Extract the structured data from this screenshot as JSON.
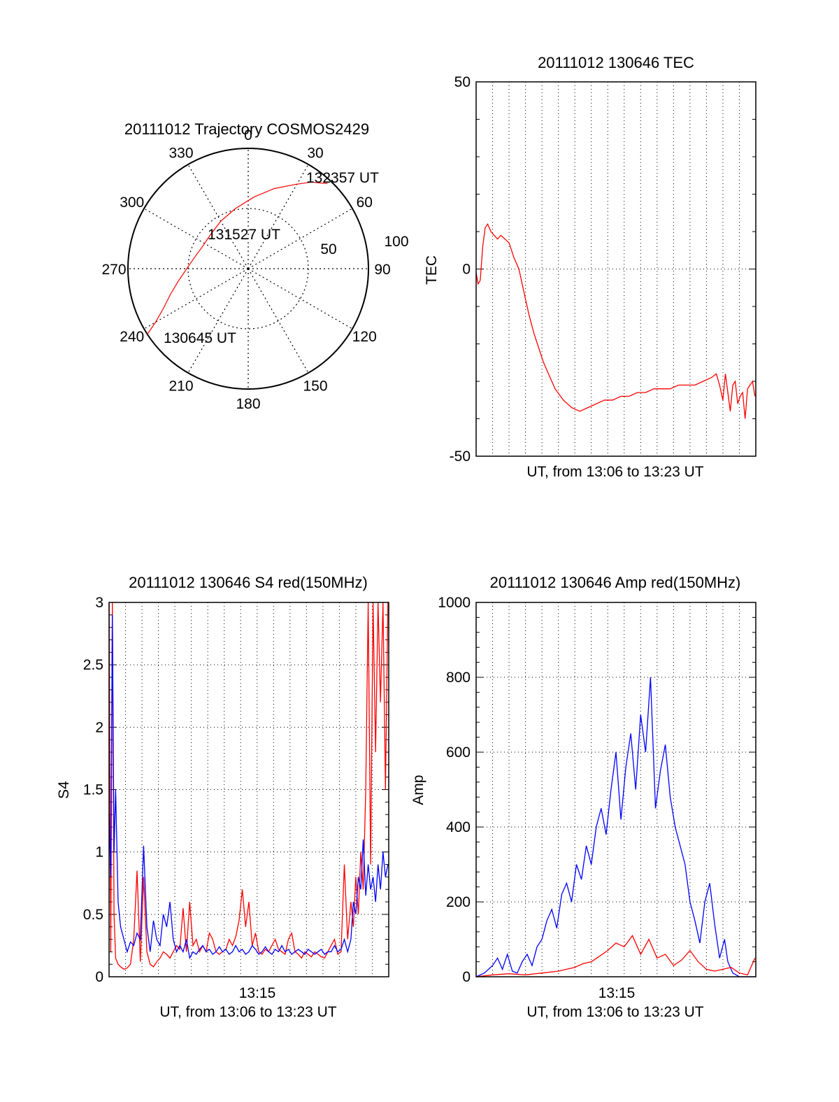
{
  "colors": {
    "red": "#ff0000",
    "blue": "#0000ff",
    "axis": "#000000"
  },
  "chart_data": [
    {
      "type": "scatter",
      "subtype": "polar-trajectory",
      "title": "20111012 Trajectory COSMOS2429",
      "angle_labels": [
        "0",
        "30",
        "60",
        "90",
        "120",
        "150",
        "180",
        "210",
        "240",
        "270",
        "300",
        "330"
      ],
      "radius_labels": [
        "50",
        "100"
      ],
      "grid": true,
      "series": [
        {
          "color": "#ff0000",
          "azimuth": [
            237,
            240,
            245,
            252,
            260,
            270,
            282,
            296,
            312,
            330,
            348,
            5,
            18,
            29,
            36,
            43
          ],
          "zenith": [
            90,
            80,
            70,
            61,
            53,
            46,
            41,
            38,
            38,
            41,
            46,
            54,
            63,
            72,
            80,
            87
          ]
        }
      ],
      "annotations": [
        "132357 UT",
        "131527 UT",
        "130645 UT"
      ]
    },
    {
      "type": "line",
      "title": "20111012 130646 TEC",
      "xlabel": "UT, from 13:06 to 13:23 UT",
      "ylabel": "TEC",
      "ylim": [
        -50,
        50
      ],
      "yticks": [
        "50",
        "0",
        "-50"
      ],
      "xlim": [
        0,
        17
      ],
      "grid": true,
      "series": [
        {
          "color": "#ff0000",
          "x": [
            0.0,
            0.12,
            0.25,
            0.4,
            0.55,
            0.7,
            0.9,
            1.1,
            1.3,
            1.5,
            1.75,
            2.0,
            2.3,
            2.6,
            2.9,
            3.2,
            3.5,
            3.8,
            4.1,
            4.4,
            4.8,
            5.3,
            5.8,
            6.3,
            6.8,
            7.3,
            7.8,
            8.3,
            8.8,
            9.3,
            9.8,
            10.3,
            10.8,
            11.3,
            11.8,
            12.3,
            12.8,
            13.3,
            13.8,
            14.3,
            14.6,
            14.8,
            15.0,
            15.15,
            15.3,
            15.45,
            15.6,
            15.75,
            15.9,
            16.05,
            16.2,
            16.35,
            16.5,
            16.65,
            16.8,
            16.95
          ],
          "y": [
            -1,
            -4,
            -3,
            6,
            11,
            12,
            10,
            9,
            8,
            9,
            8,
            7,
            3,
            0,
            -6,
            -12,
            -17,
            -21,
            -25,
            -28,
            -32,
            -35,
            -37,
            -38,
            -37,
            -36,
            -35,
            -35,
            -34,
            -34,
            -33,
            -33,
            -32,
            -32,
            -32,
            -31,
            -31,
            -31,
            -30,
            -29,
            -28,
            -31,
            -35,
            -28,
            -33,
            -38,
            -31,
            -30,
            -36,
            -34,
            -33,
            -40,
            -32,
            -31,
            -30,
            -34
          ]
        }
      ]
    },
    {
      "type": "line",
      "title": "20111012 130646 S4 red(150MHz)",
      "xlabel": "UT, from 13:06 to 13:23 UT",
      "ylabel": "S4",
      "ylim": [
        0,
        3
      ],
      "yticks": [
        "3",
        "2.5",
        "2",
        "1.5",
        "1",
        "0.5",
        "0"
      ],
      "xticks": [
        "13:15"
      ],
      "xlim": [
        0,
        17
      ],
      "grid": true,
      "series": [
        {
          "color": "#ff0000",
          "x": [
            0.0,
            0.1,
            0.2,
            0.3,
            0.4,
            0.55,
            0.7,
            0.9,
            1.1,
            1.3,
            1.5,
            1.7,
            1.9,
            2.1,
            2.3,
            2.5,
            2.7,
            2.9,
            3.1,
            3.3,
            3.5,
            3.7,
            3.9,
            4.1,
            4.3,
            4.5,
            4.7,
            4.9,
            5.1,
            5.3,
            5.5,
            5.7,
            5.9,
            6.1,
            6.3,
            6.5,
            6.7,
            6.9,
            7.1,
            7.3,
            7.5,
            7.7,
            7.9,
            8.1,
            8.3,
            8.5,
            8.7,
            8.9,
            9.1,
            9.3,
            9.5,
            9.7,
            9.9,
            10.1,
            10.3,
            10.5,
            10.7,
            10.9,
            11.1,
            11.3,
            11.5,
            11.7,
            11.9,
            12.1,
            12.3,
            12.5,
            12.7,
            12.9,
            13.1,
            13.3,
            13.5,
            13.7,
            13.9,
            14.1,
            14.3,
            14.5,
            14.7,
            14.85,
            15.0,
            15.15,
            15.3,
            15.45,
            15.6,
            15.75,
            15.9,
            16.05,
            16.2,
            16.35,
            16.5,
            16.65,
            16.8,
            16.95
          ],
          "y": [
            3,
            0.2,
            3,
            0.5,
            0.15,
            0.1,
            0.08,
            0.06,
            0.07,
            0.1,
            0.3,
            0.85,
            0.12,
            0.8,
            0.2,
            0.1,
            0.08,
            0.12,
            0.15,
            0.2,
            0.18,
            0.15,
            0.2,
            0.25,
            0.22,
            0.55,
            0.2,
            0.6,
            0.25,
            0.3,
            0.2,
            0.25,
            0.2,
            0.35,
            0.3,
            0.2,
            0.18,
            0.2,
            0.22,
            0.3,
            0.25,
            0.32,
            0.45,
            0.7,
            0.4,
            0.6,
            0.25,
            0.35,
            0.2,
            0.18,
            0.22,
            0.2,
            0.25,
            0.3,
            0.22,
            0.2,
            0.18,
            0.3,
            0.35,
            0.2,
            0.18,
            0.15,
            0.2,
            0.18,
            0.16,
            0.2,
            0.18,
            0.16,
            0.15,
            0.2,
            0.25,
            0.3,
            0.18,
            0.2,
            0.9,
            0.3,
            0.6,
            0.4,
            0.8,
            0.5,
            1.0,
            0.7,
            1.5,
            3.0,
            0.9,
            3.0,
            1.8,
            3.0,
            2.2,
            3.0,
            1.5,
            3.0
          ]
        },
        {
          "color": "#0000ff",
          "x": [
            0.0,
            0.1,
            0.2,
            0.3,
            0.4,
            0.55,
            0.7,
            0.9,
            1.1,
            1.3,
            1.5,
            1.7,
            1.9,
            2.1,
            2.3,
            2.5,
            2.7,
            2.9,
            3.1,
            3.3,
            3.5,
            3.7,
            3.9,
            4.1,
            4.3,
            4.5,
            4.7,
            4.9,
            5.1,
            5.3,
            5.5,
            5.7,
            5.9,
            6.1,
            6.3,
            6.5,
            6.7,
            6.9,
            7.1,
            7.3,
            7.5,
            7.7,
            7.9,
            8.1,
            8.3,
            8.5,
            8.7,
            8.9,
            9.1,
            9.3,
            9.5,
            9.7,
            9.9,
            10.1,
            10.3,
            10.5,
            10.7,
            10.9,
            11.1,
            11.3,
            11.5,
            11.7,
            11.9,
            12.1,
            12.3,
            12.5,
            12.7,
            12.9,
            13.1,
            13.3,
            13.5,
            13.7,
            13.9,
            14.1,
            14.3,
            14.5,
            14.7,
            14.85,
            15.0,
            15.15,
            15.3,
            15.45,
            15.6,
            15.75,
            15.9,
            16.05,
            16.2,
            16.35,
            16.5,
            16.65,
            16.8,
            16.95
          ],
          "y": [
            1.3,
            0.8,
            2.9,
            1.0,
            1.5,
            0.6,
            0.4,
            0.3,
            0.2,
            0.28,
            0.25,
            0.35,
            0.3,
            1.05,
            0.4,
            0.2,
            0.45,
            0.3,
            0.25,
            0.5,
            0.4,
            0.6,
            0.3,
            0.2,
            0.25,
            0.2,
            0.3,
            0.15,
            0.2,
            0.18,
            0.22,
            0.25,
            0.2,
            0.22,
            0.18,
            0.2,
            0.24,
            0.2,
            0.22,
            0.18,
            0.2,
            0.25,
            0.2,
            0.22,
            0.18,
            0.2,
            0.25,
            0.22,
            0.18,
            0.2,
            0.24,
            0.2,
            0.18,
            0.22,
            0.2,
            0.25,
            0.2,
            0.22,
            0.18,
            0.2,
            0.22,
            0.2,
            0.18,
            0.22,
            0.2,
            0.18,
            0.2,
            0.22,
            0.18,
            0.2,
            0.2,
            0.25,
            0.2,
            0.22,
            0.3,
            0.2,
            0.3,
            0.6,
            0.5,
            0.8,
            0.7,
            1.1,
            0.65,
            0.9,
            0.7,
            0.8,
            0.6,
            0.9,
            0.7,
            1.0,
            0.8,
            0.9
          ]
        }
      ]
    },
    {
      "type": "line",
      "title": "20111012 130646 Amp red(150MHz)",
      "xlabel": "UT, from 13:06 to 13:23 UT",
      "ylabel": "Amp",
      "ylim": [
        0,
        1000
      ],
      "yticks": [
        "1000",
        "800",
        "600",
        "400",
        "200",
        "0"
      ],
      "xticks": [
        "13:15"
      ],
      "xlim": [
        0,
        17
      ],
      "grid": true,
      "series": [
        {
          "color": "#0000ff",
          "x": [
            0,
            0.5,
            1.0,
            1.3,
            1.6,
            1.9,
            2.2,
            2.5,
            2.8,
            3.1,
            3.4,
            3.7,
            4.0,
            4.3,
            4.6,
            4.9,
            5.2,
            5.5,
            5.8,
            6.1,
            6.4,
            6.7,
            7.0,
            7.3,
            7.6,
            7.9,
            8.2,
            8.5,
            8.8,
            9.1,
            9.4,
            9.7,
            10.0,
            10.3,
            10.6,
            10.9,
            11.2,
            11.5,
            11.8,
            12.1,
            12.4,
            12.7,
            13.0,
            13.3,
            13.6,
            13.9,
            14.2,
            14.5,
            14.8,
            15.1,
            15.3,
            15.6,
            16.0,
            16.5,
            17.0
          ],
          "y": [
            0,
            10,
            30,
            50,
            20,
            60,
            15,
            10,
            40,
            60,
            30,
            80,
            100,
            150,
            180,
            130,
            220,
            250,
            200,
            300,
            260,
            350,
            300,
            400,
            450,
            380,
            500,
            600,
            420,
            560,
            650,
            500,
            700,
            600,
            800,
            450,
            550,
            620,
            480,
            400,
            350,
            300,
            200,
            150,
            90,
            200,
            250,
            140,
            50,
            100,
            40,
            10,
            0,
            0,
            0
          ]
        },
        {
          "color": "#ff0000",
          "x": [
            0,
            1.0,
            2.0,
            3.0,
            4.0,
            5.0,
            5.5,
            6.0,
            6.5,
            7.0,
            7.5,
            8.0,
            8.5,
            9.0,
            9.5,
            10.0,
            10.5,
            11.0,
            11.5,
            12.0,
            12.5,
            13.0,
            13.5,
            14.0,
            14.5,
            15.0,
            15.5,
            16.0,
            16.5,
            16.95
          ],
          "y": [
            0,
            5,
            8,
            5,
            10,
            15,
            20,
            25,
            35,
            40,
            55,
            70,
            90,
            80,
            110,
            60,
            100,
            50,
            60,
            30,
            45,
            70,
            40,
            20,
            15,
            20,
            25,
            10,
            5,
            50
          ]
        }
      ]
    }
  ]
}
